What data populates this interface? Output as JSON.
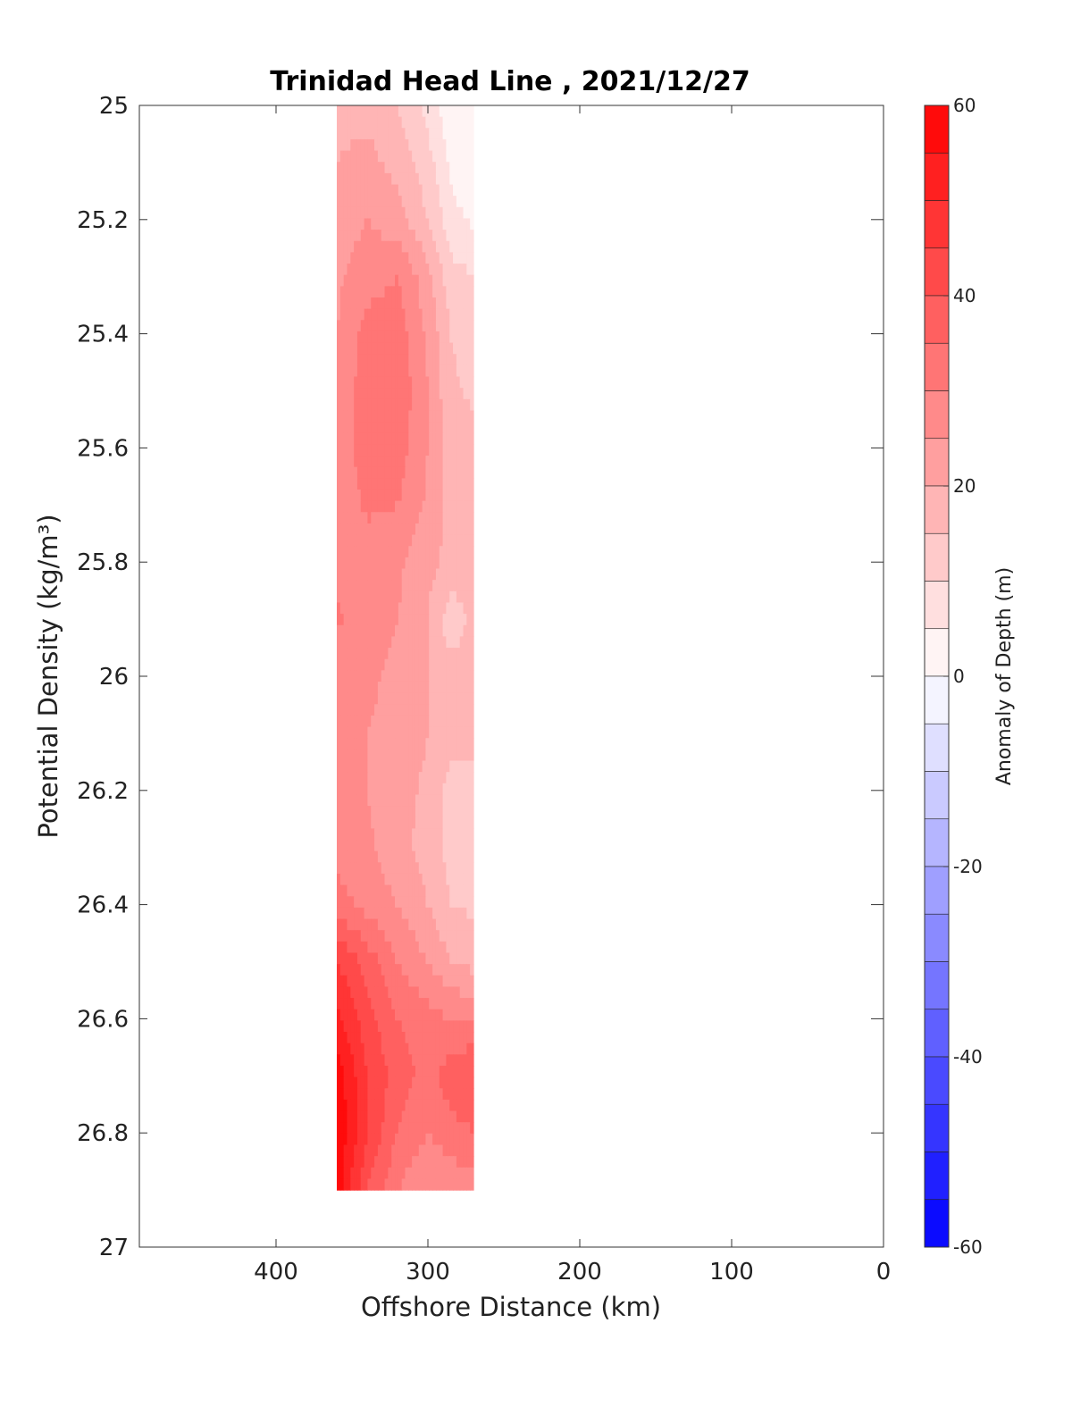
{
  "chart_data": {
    "type": "heatmap",
    "title": "Trinidad Head Line , 2021/12/27",
    "xlabel": "Offshore Distance (km)",
    "ylabel": "Potential Density (kg/m³)",
    "xlim": [
      490,
      0
    ],
    "x_reversed": true,
    "ylim": [
      25,
      27
    ],
    "y_reversed": true,
    "xticks": [
      400,
      300,
      200,
      100,
      0
    ],
    "yticks": [
      25,
      25.2,
      25.4,
      25.6,
      25.8,
      26,
      26.2,
      26.4,
      26.6,
      26.8,
      27
    ],
    "ytick_labels": [
      "25",
      "25.2",
      "25.4",
      "25.6",
      "25.8",
      "26",
      "26.2",
      "26.4",
      "26.6",
      "26.8",
      "27"
    ],
    "colorbar": {
      "label": "Anomaly of Depth (m)",
      "range": [
        -60,
        60
      ],
      "step": 5,
      "ticks": [
        60,
        40,
        20,
        0,
        -20,
        -40,
        -60
      ],
      "low_color": "#0000ff",
      "mid_color": "#ffffff",
      "high_color": "#ff0000"
    },
    "grid": false,
    "x": [
      360,
      340,
      320,
      300,
      285,
      270
    ],
    "y": [
      25.0,
      25.1,
      25.2,
      25.3,
      25.4,
      25.5,
      25.6,
      25.7,
      25.8,
      25.9,
      26.0,
      26.1,
      26.2,
      26.3,
      26.4,
      26.5,
      26.6,
      26.7,
      26.8,
      26.9
    ],
    "z": [
      [
        18,
        18,
        15,
        8,
        2,
        0
      ],
      [
        20,
        22,
        18,
        12,
        4,
        0
      ],
      [
        22,
        25,
        22,
        15,
        7,
        4
      ],
      [
        24,
        28,
        30,
        22,
        12,
        10
      ],
      [
        25,
        32,
        33,
        24,
        15,
        12
      ],
      [
        26,
        33,
        34,
        25,
        16,
        14
      ],
      [
        26,
        33,
        33,
        25,
        18,
        17
      ],
      [
        26,
        31,
        30,
        24,
        18,
        18
      ],
      [
        27,
        27,
        26,
        22,
        18,
        18
      ],
      [
        31,
        27,
        25,
        20,
        12,
        16
      ],
      [
        27,
        26,
        24,
        20,
        17,
        17
      ],
      [
        26,
        25,
        23,
        20,
        17,
        17
      ],
      [
        26,
        25,
        22,
        19,
        13,
        13
      ],
      [
        27,
        26,
        22,
        18,
        13,
        13
      ],
      [
        33,
        28,
        25,
        20,
        15,
        14
      ],
      [
        45,
        38,
        30,
        25,
        20,
        18
      ],
      [
        52,
        42,
        35,
        32,
        30,
        30
      ],
      [
        58,
        45,
        38,
        33,
        38,
        40
      ],
      [
        60,
        45,
        35,
        30,
        33,
        35
      ],
      [
        58,
        40,
        30,
        25,
        26,
        28
      ]
    ]
  }
}
